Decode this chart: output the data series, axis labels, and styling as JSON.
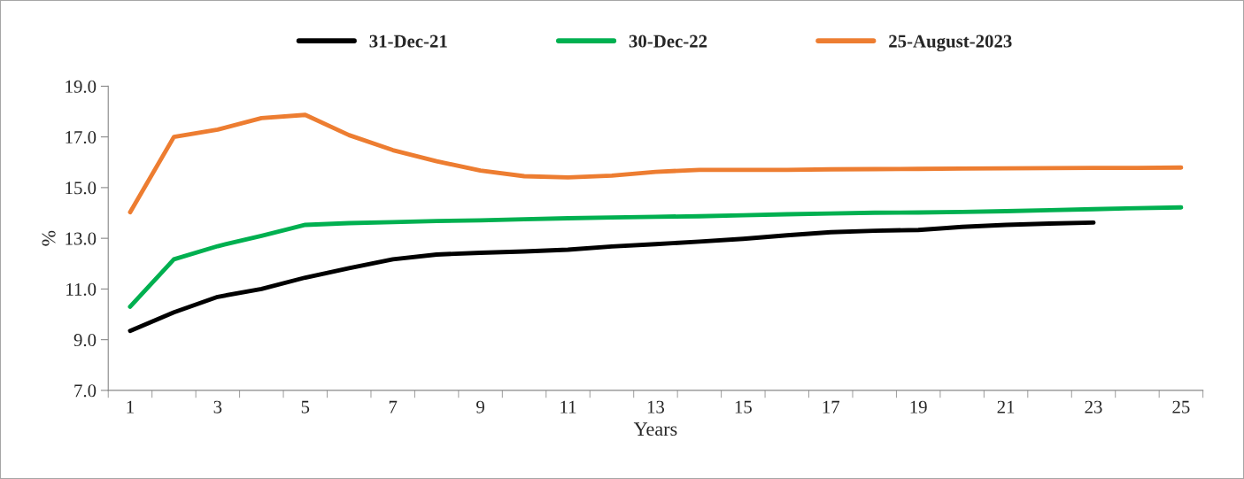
{
  "chart_data": {
    "type": "line",
    "xlabel": "Years",
    "ylabel": "%",
    "categories": [
      "1",
      null,
      "3",
      null,
      "5",
      null,
      "7",
      null,
      "9",
      null,
      "11",
      null,
      "13",
      null,
      "15",
      null,
      "17",
      null,
      "19",
      null,
      "21",
      null,
      "23",
      null,
      "25"
    ],
    "series": [
      {
        "name": "31-Dec-21",
        "color": "#000000",
        "values": [
          9.35,
          10.08,
          10.69,
          11.0,
          11.45,
          11.82,
          12.17,
          12.36,
          12.43,
          12.48,
          12.55,
          12.68,
          12.77,
          12.87,
          12.98,
          13.12,
          13.24,
          13.3,
          13.33,
          13.45,
          13.53,
          13.58,
          13.62,
          null,
          null
        ]
      },
      {
        "name": "30-Dec-22",
        "color": "#00b050",
        "values": [
          10.3,
          12.17,
          12.69,
          13.1,
          13.53,
          13.6,
          13.64,
          13.68,
          13.71,
          13.75,
          13.79,
          13.82,
          13.85,
          13.87,
          13.91,
          13.95,
          13.98,
          14.01,
          14.02,
          14.04,
          14.07,
          14.11,
          14.15,
          14.19,
          14.22
        ]
      },
      {
        "name": "25-August-2023",
        "color": "#ed7d31",
        "values": [
          14.03,
          17.0,
          17.29,
          17.74,
          17.87,
          17.07,
          16.48,
          16.04,
          15.67,
          15.45,
          15.4,
          15.47,
          15.62,
          15.7,
          15.7,
          15.7,
          15.72,
          15.73,
          15.74,
          15.75,
          15.76,
          15.77,
          15.78,
          15.78,
          15.79
        ]
      }
    ],
    "ylim": [
      7.0,
      19.0
    ],
    "yticks": [
      {
        "value": 7,
        "label": "7.0"
      },
      {
        "value": 9,
        "label": "9.0"
      },
      {
        "value": 11,
        "label": "11.0"
      },
      {
        "value": 13,
        "label": "13.0"
      },
      {
        "value": 15,
        "label": "15.0"
      },
      {
        "value": 17,
        "label": "17.0"
      },
      {
        "value": 19,
        "label": "19.0"
      }
    ],
    "grid": false,
    "legend": "top",
    "marker": "none",
    "line_style": "solid"
  }
}
